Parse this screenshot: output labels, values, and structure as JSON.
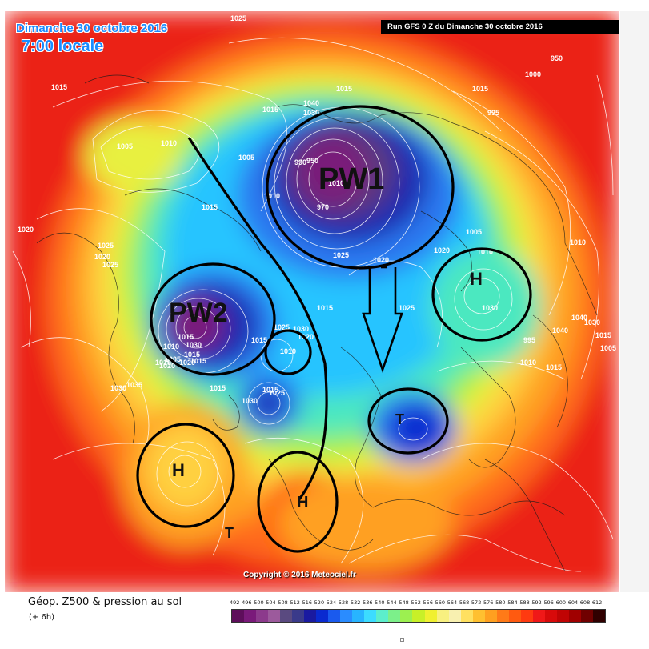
{
  "header": {
    "date_title": "Dimanche 30 octobre 2016",
    "time_title": "7:00 locale",
    "run_banner": "Run GFS 0 Z du Dimanche 30 octobre 2016"
  },
  "map": {
    "copyright": "Copyright © 2016 Meteociel.fr",
    "annotations": {
      "pw1": "PW1",
      "pw2": "PW2",
      "h_east": "H",
      "h_west": "H",
      "h_south": "H",
      "t_europe": "T",
      "t_south": "T"
    },
    "pressure_labels": [
      "1025",
      "1010",
      "1015",
      "1015",
      "1005",
      "1010",
      "1015",
      "1005",
      "1010",
      "1020",
      "1025",
      "1015",
      "1020",
      "1025",
      "990",
      "950",
      "970",
      "1030",
      "1040",
      "1030",
      "1025",
      "1020",
      "1015",
      "1025",
      "1020",
      "1020",
      "1025",
      "1015",
      "1015",
      "950",
      "1000",
      "995",
      "1005",
      "1010",
      "1030",
      "1040",
      "1010",
      "1040",
      "1030",
      "1015",
      "1005",
      "995",
      "1010",
      "1015",
      "1030",
      "1035",
      "1015",
      "1010",
      "1030",
      "1015",
      "1005",
      "1015",
      "1015",
      "1020",
      "1020",
      "1015",
      "1010",
      "1015",
      "1025",
      "1030"
    ]
  },
  "legend": {
    "title": "Géop. Z500 & pression au sol",
    "subtitle": "(+ 6h)",
    "scale_labels": [
      "492",
      "496",
      "500",
      "504",
      "508",
      "512",
      "516",
      "520",
      "524",
      "528",
      "532",
      "536",
      "540",
      "544",
      "548",
      "552",
      "556",
      "560",
      "564",
      "568",
      "572",
      "576",
      "580",
      "584",
      "588",
      "592",
      "596",
      "600",
      "604",
      "608",
      "612"
    ],
    "colors": [
      "#5e0e5b",
      "#7a1a7a",
      "#8c3a8c",
      "#9c5a9c",
      "#5a4a80",
      "#3a3a8a",
      "#1a1aa0",
      "#0a2ad0",
      "#1a5aee",
      "#2a8cff",
      "#28b4ff",
      "#3cdcff",
      "#5ceecc",
      "#7cf08a",
      "#9cf050",
      "#c8f028",
      "#f0f030",
      "#f8f080",
      "#f8f0b0",
      "#ffe060",
      "#ffc030",
      "#ffa020",
      "#ff7a18",
      "#ff5a10",
      "#ff3a10",
      "#f01818",
      "#d80a0a",
      "#c00404",
      "#a00000",
      "#700000",
      "#300000"
    ]
  },
  "colors": {
    "title_blue": "#1a8cff",
    "banner_bg": "#000000"
  }
}
